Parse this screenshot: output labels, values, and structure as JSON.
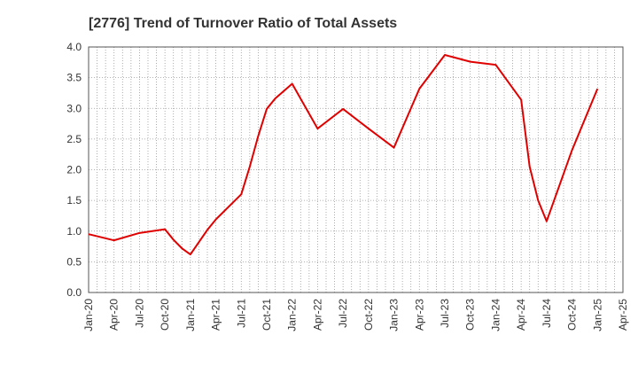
{
  "chart_data": {
    "type": "line",
    "title": "[2776]  Trend of Turnover Ratio of Total Assets",
    "xlabel": "",
    "ylabel": "",
    "ylim": [
      0,
      4.0
    ],
    "yticks": [
      "0.0",
      "0.5",
      "1.0",
      "1.5",
      "2.0",
      "2.5",
      "3.0",
      "3.5",
      "4.0"
    ],
    "xticks": [
      "Jan-20",
      "Apr-20",
      "Jul-20",
      "Oct-20",
      "Jan-21",
      "Apr-21",
      "Jul-21",
      "Oct-21",
      "Jan-22",
      "Apr-22",
      "Jul-22",
      "Oct-22",
      "Jan-23",
      "Apr-23",
      "Jul-23",
      "Oct-23",
      "Jan-24",
      "Apr-24",
      "Jul-24",
      "Oct-24",
      "Jan-25",
      "Apr-25"
    ],
    "grid": true,
    "line_color": "#e00000",
    "series": [
      {
        "points": [
          {
            "x": "Jan-20",
            "y": 0.95
          },
          {
            "x": "Apr-20",
            "y": 0.85
          },
          {
            "x": "Jul-20",
            "y": 0.97
          },
          {
            "x": "Oct-20",
            "y": 1.03
          },
          {
            "x": "Nov-20",
            "y": 0.86
          },
          {
            "x": "Dec-20",
            "y": 0.72
          },
          {
            "x": "Jan-21",
            "y": 0.62
          },
          {
            "x": "Feb-21",
            "y": 0.82
          },
          {
            "x": "Mar-21",
            "y": 1.02
          },
          {
            "x": "Apr-21",
            "y": 1.19
          },
          {
            "x": "Jul-21",
            "y": 1.6
          },
          {
            "x": "Aug-21",
            "y": 2.05
          },
          {
            "x": "Sep-21",
            "y": 2.55
          },
          {
            "x": "Oct-21",
            "y": 2.99
          },
          {
            "x": "Nov-21",
            "y": 3.16
          },
          {
            "x": "Jan-22",
            "y": 3.4
          },
          {
            "x": "Apr-22",
            "y": 2.67
          },
          {
            "x": "Jul-22",
            "y": 2.99
          },
          {
            "x": "Oct-22",
            "y": 2.67
          },
          {
            "x": "Jan-23",
            "y": 2.36
          },
          {
            "x": "Apr-23",
            "y": 3.32
          },
          {
            "x": "Jul-23",
            "y": 3.87
          },
          {
            "x": "Oct-23",
            "y": 3.76
          },
          {
            "x": "Jan-24",
            "y": 3.71
          },
          {
            "x": "Apr-24",
            "y": 3.14
          },
          {
            "x": "May-24",
            "y": 2.05
          },
          {
            "x": "Jun-24",
            "y": 1.5
          },
          {
            "x": "Jul-24",
            "y": 1.16
          },
          {
            "x": "Oct-24",
            "y": 2.32
          },
          {
            "x": "Jan-25",
            "y": 3.32
          }
        ]
      }
    ]
  }
}
